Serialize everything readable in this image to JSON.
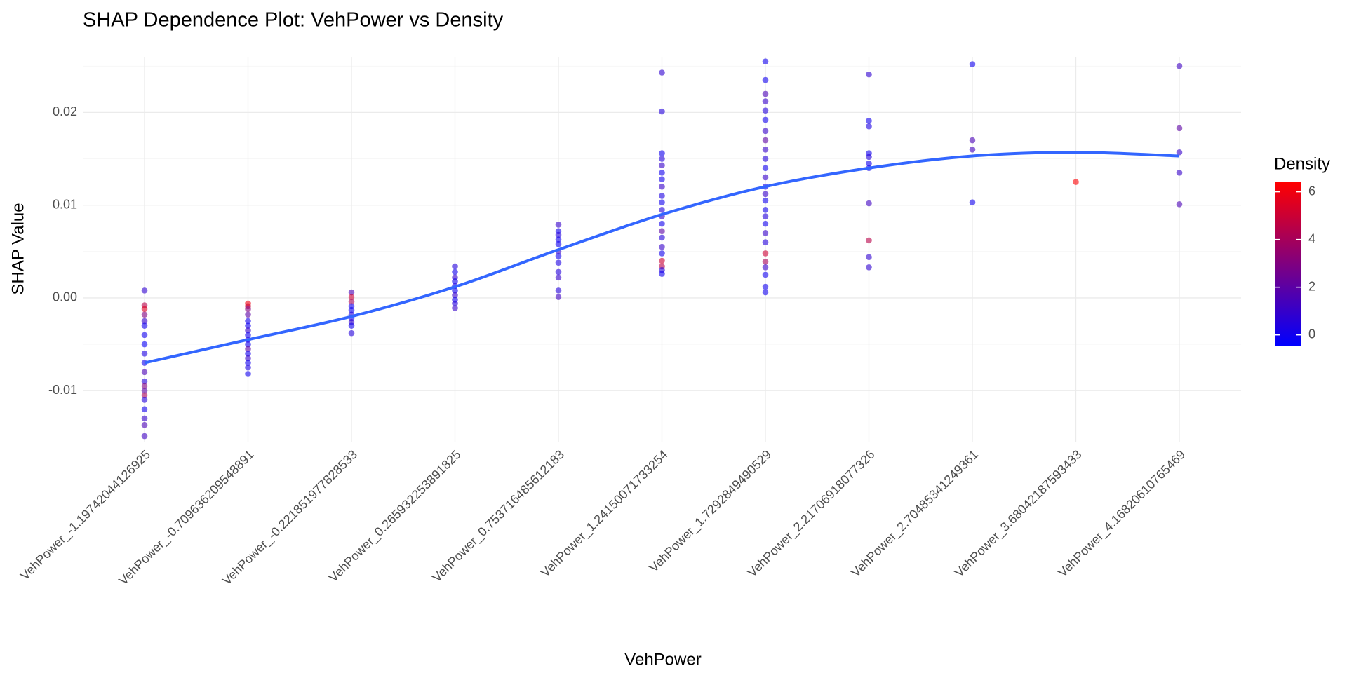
{
  "chart_data": {
    "type": "scatter",
    "title": "SHAP Dependence Plot: VehPower vs Density",
    "x_label": "VehPower",
    "y_label": "SHAP Value",
    "categories": [
      "VehPower_-1.19742044126925",
      "VehPower_-0.709636209548891",
      "VehPower_-0.221851977828533",
      "VehPower_0.265932253891825",
      "VehPower_0.753716485612183",
      "VehPower_1.24150071733254",
      "VehPower_1.7292849490529",
      "VehPower_2.21706918077326",
      "VehPower_2.70485341249361",
      "VehPower_3.68042187593433",
      "VehPower_4.16820610765469"
    ],
    "values": [
      [
        0.0008,
        -0.0008,
        -0.0012,
        -0.0018,
        -0.0025,
        -0.003,
        -0.004,
        -0.005,
        -0.006,
        -0.007,
        -0.008,
        -0.009,
        -0.0095,
        -0.01,
        -0.0105,
        -0.011,
        -0.012,
        -0.013,
        -0.0137,
        -0.0149
      ],
      [
        -0.0006,
        -0.0009,
        -0.0012,
        -0.0018,
        -0.0025,
        -0.003,
        -0.0035,
        -0.004,
        -0.0045,
        -0.005,
        -0.0055,
        -0.006,
        -0.0065,
        -0.007,
        -0.0075,
        -0.0082
      ],
      [
        0.0006,
        0.0001,
        -0.0004,
        -0.0009,
        -0.0013,
        -0.0018,
        -0.0022,
        -0.0026,
        -0.003,
        -0.0038
      ],
      [
        0.0034,
        0.0028,
        0.0022,
        0.0018,
        0.0013,
        0.0008,
        0.0003,
        -0.0002,
        -0.0006,
        -0.0011
      ],
      [
        0.0079,
        0.0072,
        0.0068,
        0.0063,
        0.0058,
        0.005,
        0.0045,
        0.0038,
        0.0028,
        0.0022,
        0.0008,
        0.0001
      ],
      [
        0.0243,
        0.0201,
        0.0156,
        0.015,
        0.0143,
        0.0135,
        0.0128,
        0.012,
        0.011,
        0.0103,
        0.0095,
        0.0088,
        0.008,
        0.0072,
        0.0065,
        0.0055,
        0.0048,
        0.004,
        0.0034,
        0.003,
        0.0026
      ],
      [
        0.0255,
        0.0235,
        0.022,
        0.0212,
        0.0202,
        0.0192,
        0.018,
        0.017,
        0.016,
        0.015,
        0.014,
        0.013,
        0.012,
        0.0112,
        0.0105,
        0.0095,
        0.0088,
        0.008,
        0.007,
        0.006,
        0.0048,
        0.0039,
        0.0033,
        0.0025,
        0.0012,
        0.0006
      ],
      [
        0.0241,
        0.0191,
        0.0185,
        0.0156,
        0.0152,
        0.0145,
        0.014,
        0.0102,
        0.0062,
        0.0044,
        0.0033
      ],
      [
        0.0252,
        0.017,
        0.016,
        0.0103
      ],
      [
        0.0125
      ],
      [
        0.025,
        0.0183,
        0.0157,
        0.0135,
        0.0101
      ]
    ],
    "density": [
      [
        0.8,
        4.5,
        5.5,
        3,
        1,
        0,
        0,
        -0.2,
        0.3,
        0,
        1.5,
        0.5,
        3,
        2,
        4,
        0.5,
        0,
        1,
        1.5,
        1.2
      ],
      [
        6,
        5,
        3,
        2,
        0,
        0,
        1,
        0,
        0.5,
        0,
        2,
        0,
        1,
        0,
        0.3,
        0
      ],
      [
        1.5,
        5,
        4,
        0,
        0,
        0.5,
        0,
        1,
        0,
        0.5
      ],
      [
        0.5,
        0,
        1,
        0,
        0.3,
        0,
        1,
        0,
        0.5,
        1
      ],
      [
        1,
        0,
        0.5,
        0,
        0,
        1,
        0,
        0.3,
        0.5,
        1,
        0.5,
        1.2
      ],
      [
        0.8,
        0.5,
        0,
        0.5,
        1,
        0,
        0,
        1,
        0.3,
        0,
        0.5,
        1,
        0,
        2,
        0.5,
        1,
        0,
        5,
        4.5,
        0.5,
        0
      ],
      [
        0,
        0,
        1.5,
        1,
        0.5,
        0,
        1,
        2,
        1,
        0.5,
        0,
        1,
        0,
        1,
        0,
        0,
        0.5,
        0,
        1,
        0.5,
        5,
        4,
        1,
        0,
        0,
        0
      ],
      [
        0.8,
        0,
        0.3,
        0,
        0.5,
        0,
        0,
        1.2,
        4.5,
        0.8,
        0.8
      ],
      [
        0,
        1.5,
        1.3,
        0
      ],
      [
        6.3
      ],
      [
        1.2,
        2,
        1,
        1,
        1.5
      ]
    ],
    "smooth": {
      "color": "#3366ff",
      "values": [
        -0.007,
        -0.0045,
        -0.002,
        0.0012,
        0.0052,
        0.009,
        0.012,
        0.014,
        0.0153,
        0.0157,
        0.0153
      ]
    },
    "ylim": [
      -0.0155,
      0.026
    ],
    "yticks": [
      -0.01,
      {
        "value": 0,
        "label": "0.00"
      },
      0.01,
      0.02
    ],
    "minor_yticks": [
      -0.015,
      -0.005,
      0.005,
      0.015,
      0.025
    ],
    "grid": true,
    "color_scale": {
      "title": "Density",
      "low": "#0000ff",
      "high": "#ff0000",
      "lim": [
        -0.45,
        6.4
      ],
      "ticks": [
        0,
        2,
        4,
        6
      ]
    }
  }
}
